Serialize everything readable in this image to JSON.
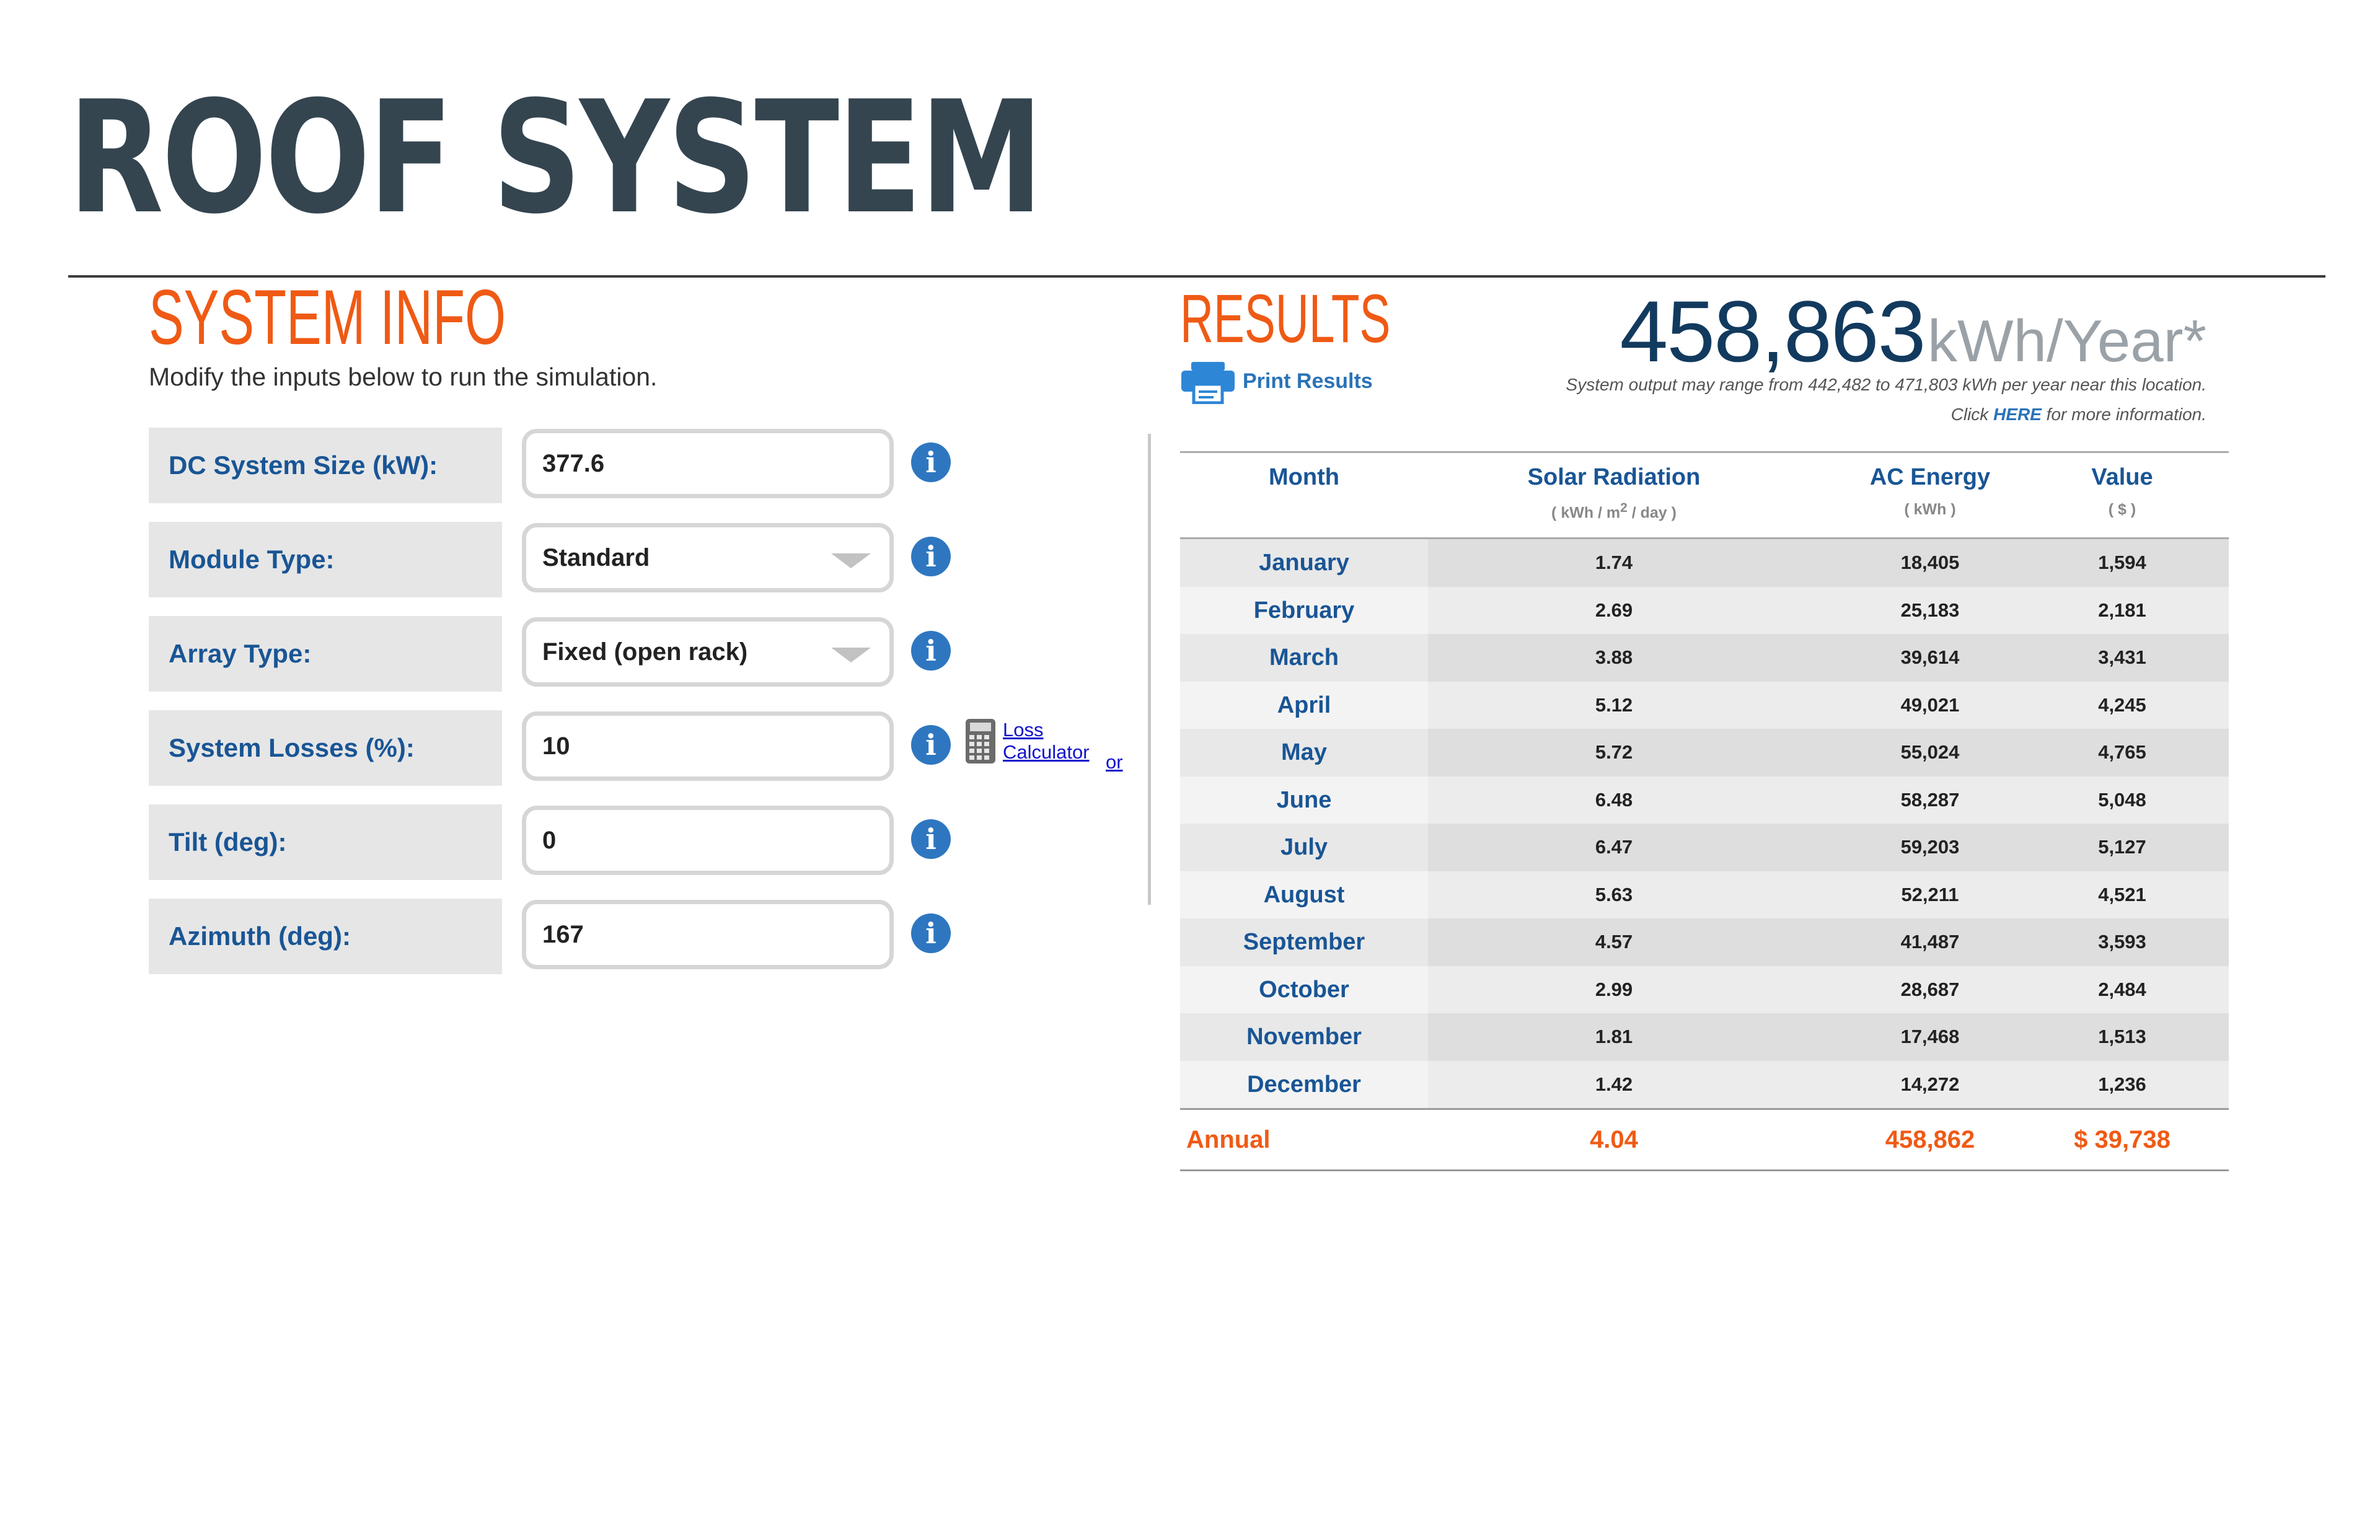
{
  "page": {
    "title": "ROOF SYSTEM"
  },
  "system_info": {
    "heading": "SYSTEM INFO",
    "subtitle": "Modify the inputs below to run the simulation.",
    "fields": [
      {
        "label": "DC System Size (kW):",
        "value": "377.6"
      },
      {
        "label": "Module Type:",
        "value": "Standard"
      },
      {
        "label": "Array Type:",
        "value": "Fixed (open rack)"
      },
      {
        "label": "System Losses (%):",
        "value": "10"
      },
      {
        "label": "Tilt (deg):",
        "value": "0"
      },
      {
        "label": "Azimuth (deg):",
        "value": "167"
      }
    ],
    "info_glyph": "i",
    "loss_calculator": {
      "line1": "Loss",
      "line2": "Calculator"
    },
    "stray_link": "or"
  },
  "results": {
    "heading": "RESULTS",
    "print_label": "Print Results",
    "total_value": "458,863",
    "total_unit": "kWh/Year*",
    "range_note": "System output may range from 442,482 to 471,803 kWh per year near this location.",
    "more_pre": "Click ",
    "more_link": "HERE",
    "more_post": " for more information.",
    "columns": [
      {
        "header": "Month",
        "unit": ""
      },
      {
        "header": "Solar Radiation",
        "unit_pre": "( kWh / m",
        "unit_sup": "2",
        "unit_post": " / day )"
      },
      {
        "header": "AC Energy",
        "unit": "( kWh )"
      },
      {
        "header": "Value",
        "unit": "( $ )"
      }
    ],
    "rows": [
      {
        "month": "January",
        "radiation": "1.74",
        "energy": "18,405",
        "value": "1,594"
      },
      {
        "month": "February",
        "radiation": "2.69",
        "energy": "25,183",
        "value": "2,181"
      },
      {
        "month": "March",
        "radiation": "3.88",
        "energy": "39,614",
        "value": "3,431"
      },
      {
        "month": "April",
        "radiation": "5.12",
        "energy": "49,021",
        "value": "4,245"
      },
      {
        "month": "May",
        "radiation": "5.72",
        "energy": "55,024",
        "value": "4,765"
      },
      {
        "month": "June",
        "radiation": "6.48",
        "energy": "58,287",
        "value": "5,048"
      },
      {
        "month": "July",
        "radiation": "6.47",
        "energy": "59,203",
        "value": "5,127"
      },
      {
        "month": "August",
        "radiation": "5.63",
        "energy": "52,211",
        "value": "4,521"
      },
      {
        "month": "September",
        "radiation": "4.57",
        "energy": "41,487",
        "value": "3,593"
      },
      {
        "month": "October",
        "radiation": "2.99",
        "energy": "28,687",
        "value": "2,484"
      },
      {
        "month": "November",
        "radiation": "1.81",
        "energy": "17,468",
        "value": "1,513"
      },
      {
        "month": "December",
        "radiation": "1.42",
        "energy": "14,272",
        "value": "1,236"
      }
    ],
    "annual": {
      "label": "Annual",
      "radiation": "4.04",
      "energy": "458,862",
      "value": "$ 39,738"
    }
  },
  "colors": {
    "accent_orange": "#ef5a15",
    "label_blue": "#195595",
    "title_slate": "#344550",
    "info_blue": "#2e77c0"
  },
  "icons": {
    "info": "info-icon",
    "calculator": "calculator-icon",
    "printer": "printer-icon",
    "dropdown": "chevron-down-icon"
  }
}
